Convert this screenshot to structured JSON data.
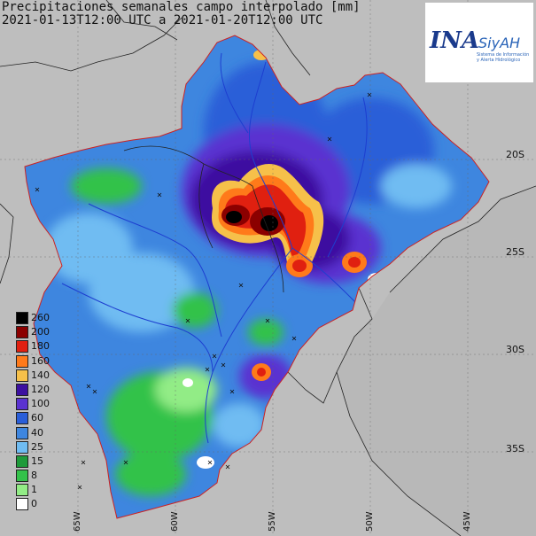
{
  "title_line1": "Precipitaciones semanales campo interpolado [mm]",
  "title_line2": "2021-01-13T12:00 UTC a 2021-01-20T12:00 UTC",
  "logo": {
    "brand": "INA",
    "product": "SiyAH",
    "subtitle": "Sistema de Información y Alerta Hidrológico",
    "color": "#1a3a8c"
  },
  "lat_labels": [
    "20S",
    "25S",
    "30S",
    "35S"
  ],
  "lon_labels": [
    "65W",
    "60W",
    "55W",
    "50W",
    "45W"
  ],
  "legend": [
    {
      "label": "260",
      "color": "#000000"
    },
    {
      "label": "200",
      "color": "#8b0000"
    },
    {
      "label": "180",
      "color": "#e02010"
    },
    {
      "label": "160",
      "color": "#ff7a1a"
    },
    {
      "label": "140",
      "color": "#f6c04a"
    },
    {
      "label": "120",
      "color": "#3c10a0"
    },
    {
      "label": "100",
      "color": "#5a32d0"
    },
    {
      "label": "60",
      "color": "#2a5ed8"
    },
    {
      "label": "40",
      "color": "#3e86df"
    },
    {
      "label": "25",
      "color": "#6fbcf2"
    },
    {
      "label": "15",
      "color": "#1e9a3a"
    },
    {
      "label": "8",
      "color": "#33c24a"
    },
    {
      "label": "1",
      "color": "#92ec86"
    },
    {
      "label": "0",
      "color": "#ffffff"
    }
  ]
}
